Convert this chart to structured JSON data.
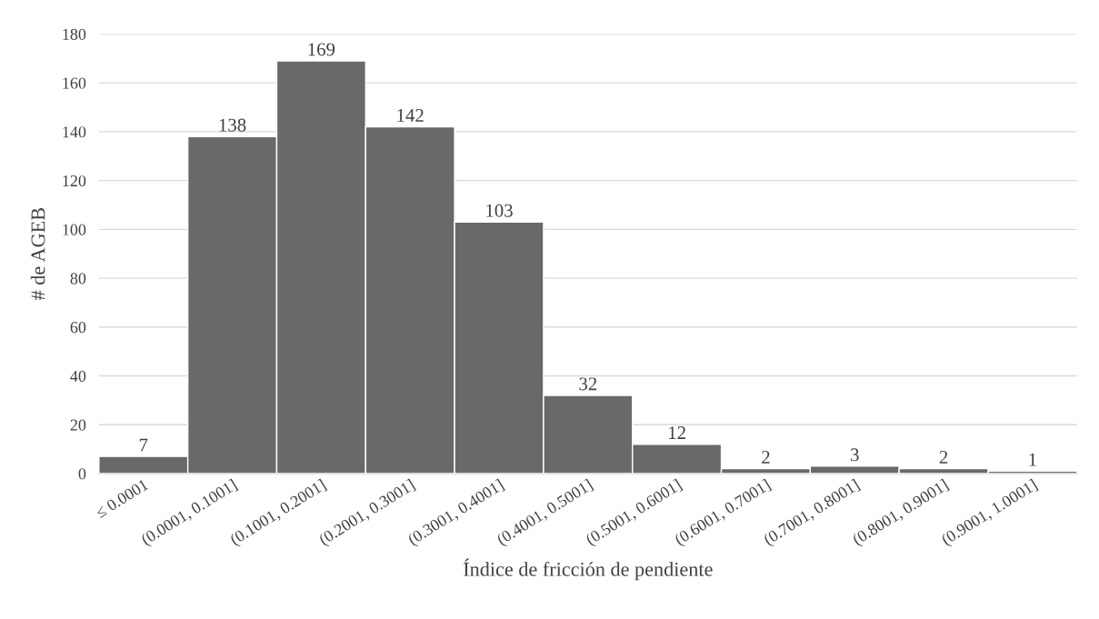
{
  "chart_data": {
    "type": "bar",
    "xlabel": "Índice de fricción de pendiente",
    "ylabel": "# de AGEB",
    "categories": [
      "≤ 0.0001",
      "(0.0001, 0.1001]",
      "(0.1001, 0.2001]",
      "(0.2001, 0.3001]",
      "(0.3001, 0.4001]",
      "(0.4001, 0.5001]",
      "(0.5001, 0.6001]",
      "(0.6001, 0.7001]",
      "(0.7001, 0.8001]",
      "(0.8001, 0.9001]",
      "(0.9001, 1.0001]"
    ],
    "values": [
      7,
      138,
      169,
      142,
      103,
      32,
      12,
      2,
      3,
      2,
      1
    ],
    "color": "#696969",
    "ylim": [
      0,
      180
    ],
    "yticks": [
      0,
      20,
      40,
      60,
      80,
      100,
      120,
      140,
      160,
      180
    ],
    "grid": "y",
    "data_labels": true
  }
}
